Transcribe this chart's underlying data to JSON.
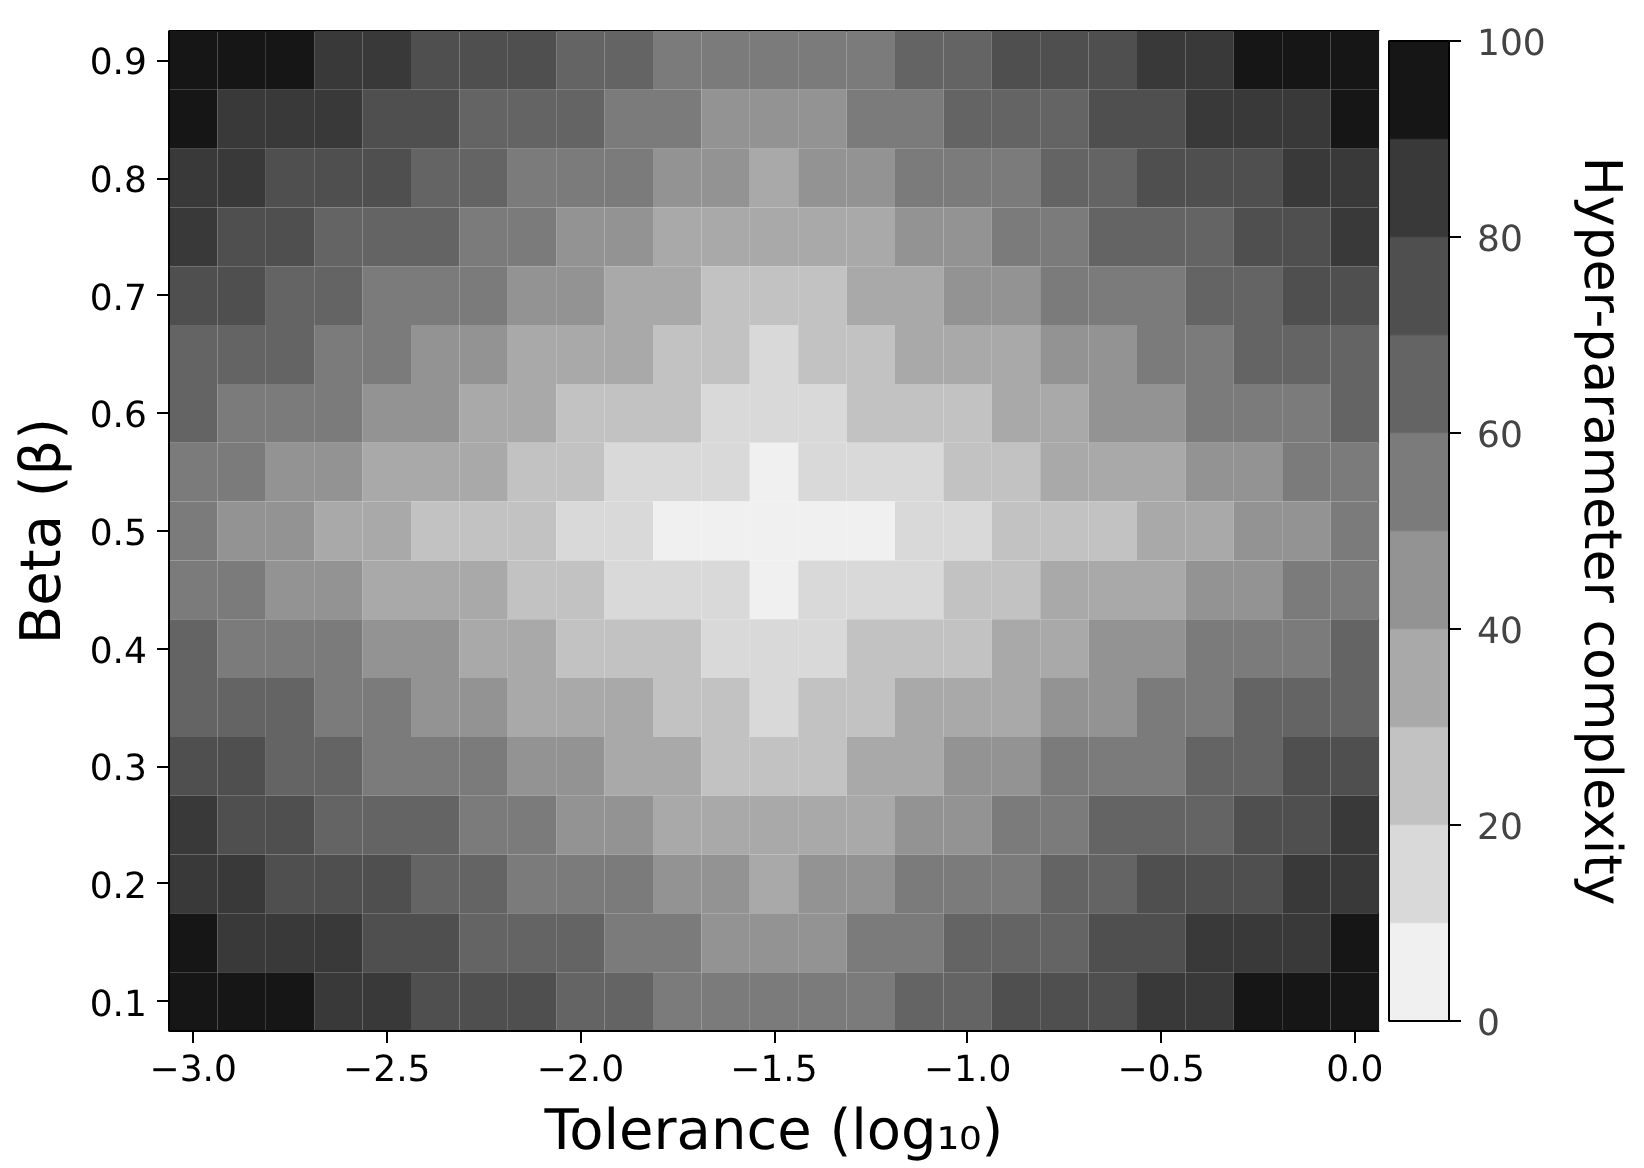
{
  "chart_data": {
    "type": "heatmap",
    "xlabel": "Tolerance (log₁₀)",
    "ylabel": "Beta (β)",
    "clabel": "Hyper-parameter complexity",
    "clim": [
      0,
      100
    ],
    "cticks": [
      0,
      20,
      40,
      60,
      80,
      100
    ],
    "colors": [
      "#f0f0f0",
      "#d9d9d9",
      "#c2c2c2",
      "#a9a9a9",
      "#939393",
      "#7b7b7b",
      "#646464",
      "#4f4f4f",
      "#393939",
      "#161616"
    ],
    "categories": [
      "−3.0",
      null,
      null,
      null,
      "−2.5",
      null,
      null,
      null,
      "−2.0",
      null,
      null,
      null,
      "−1.5",
      null,
      null,
      null,
      "−1.0",
      null,
      null,
      null,
      "−0.5",
      null,
      null,
      null,
      "0.0"
    ],
    "y_categories": [
      "0.9",
      null,
      "0.8",
      null,
      "0.7",
      null,
      "0.6",
      null,
      "0.5",
      null,
      "0.4",
      null,
      "0.3",
      null,
      "0.2",
      null,
      "0.1"
    ],
    "cells": [
      [
        95,
        95,
        95,
        85,
        85,
        75,
        75,
        75,
        65,
        65,
        55,
        55,
        55,
        55,
        55,
        65,
        65,
        75,
        75,
        75,
        85,
        85,
        95,
        95,
        95
      ],
      [
        95,
        85,
        85,
        85,
        75,
        75,
        65,
        65,
        65,
        55,
        55,
        45,
        45,
        45,
        55,
        55,
        65,
        65,
        65,
        75,
        75,
        85,
        85,
        85,
        95
      ],
      [
        85,
        85,
        75,
        75,
        75,
        65,
        65,
        55,
        55,
        55,
        45,
        45,
        35,
        45,
        45,
        55,
        55,
        55,
        65,
        65,
        75,
        75,
        75,
        85,
        85
      ],
      [
        85,
        75,
        75,
        65,
        65,
        65,
        55,
        55,
        45,
        45,
        35,
        35,
        35,
        35,
        35,
        45,
        45,
        55,
        55,
        65,
        65,
        65,
        75,
        75,
        85
      ],
      [
        75,
        75,
        65,
        65,
        55,
        55,
        55,
        45,
        45,
        35,
        35,
        25,
        25,
        25,
        35,
        35,
        45,
        45,
        55,
        55,
        55,
        65,
        65,
        75,
        75
      ],
      [
        65,
        65,
        65,
        55,
        55,
        45,
        45,
        35,
        35,
        35,
        25,
        25,
        15,
        25,
        25,
        35,
        35,
        35,
        45,
        45,
        55,
        55,
        65,
        65,
        65
      ],
      [
        65,
        55,
        55,
        55,
        45,
        45,
        35,
        35,
        25,
        25,
        25,
        15,
        15,
        15,
        25,
        25,
        25,
        35,
        35,
        45,
        45,
        55,
        55,
        55,
        65
      ],
      [
        55,
        55,
        45,
        45,
        35,
        35,
        35,
        25,
        25,
        15,
        15,
        15,
        5,
        15,
        15,
        15,
        25,
        25,
        35,
        35,
        35,
        45,
        45,
        55,
        55
      ],
      [
        55,
        45,
        45,
        35,
        35,
        25,
        25,
        25,
        15,
        15,
        5,
        5,
        5,
        5,
        5,
        15,
        15,
        25,
        25,
        25,
        35,
        35,
        45,
        45,
        55
      ],
      [
        55,
        55,
        45,
        45,
        35,
        35,
        35,
        25,
        25,
        15,
        15,
        15,
        5,
        15,
        15,
        15,
        25,
        25,
        35,
        35,
        35,
        45,
        45,
        55,
        55
      ],
      [
        65,
        55,
        55,
        55,
        45,
        45,
        35,
        35,
        25,
        25,
        25,
        15,
        15,
        15,
        25,
        25,
        25,
        35,
        35,
        45,
        45,
        55,
        55,
        55,
        65
      ],
      [
        65,
        65,
        65,
        55,
        55,
        45,
        45,
        35,
        35,
        35,
        25,
        25,
        15,
        25,
        25,
        35,
        35,
        35,
        45,
        45,
        55,
        55,
        65,
        65,
        65
      ],
      [
        75,
        75,
        65,
        65,
        55,
        55,
        55,
        45,
        45,
        35,
        35,
        25,
        25,
        25,
        35,
        35,
        45,
        45,
        55,
        55,
        55,
        65,
        65,
        75,
        75
      ],
      [
        85,
        75,
        75,
        65,
        65,
        65,
        55,
        55,
        45,
        45,
        35,
        35,
        35,
        35,
        35,
        45,
        45,
        55,
        55,
        65,
        65,
        65,
        75,
        75,
        85
      ],
      [
        85,
        85,
        75,
        75,
        75,
        65,
        65,
        55,
        55,
        55,
        45,
        45,
        35,
        45,
        45,
        55,
        55,
        55,
        65,
        65,
        75,
        75,
        75,
        85,
        85
      ],
      [
        95,
        85,
        85,
        85,
        75,
        75,
        65,
        65,
        65,
        55,
        55,
        45,
        45,
        45,
        55,
        55,
        65,
        65,
        65,
        75,
        75,
        85,
        85,
        85,
        95
      ],
      [
        95,
        95,
        95,
        85,
        85,
        75,
        75,
        75,
        65,
        65,
        55,
        55,
        55,
        55,
        55,
        65,
        65,
        75,
        75,
        75,
        85,
        85,
        95,
        95,
        95
      ]
    ]
  }
}
